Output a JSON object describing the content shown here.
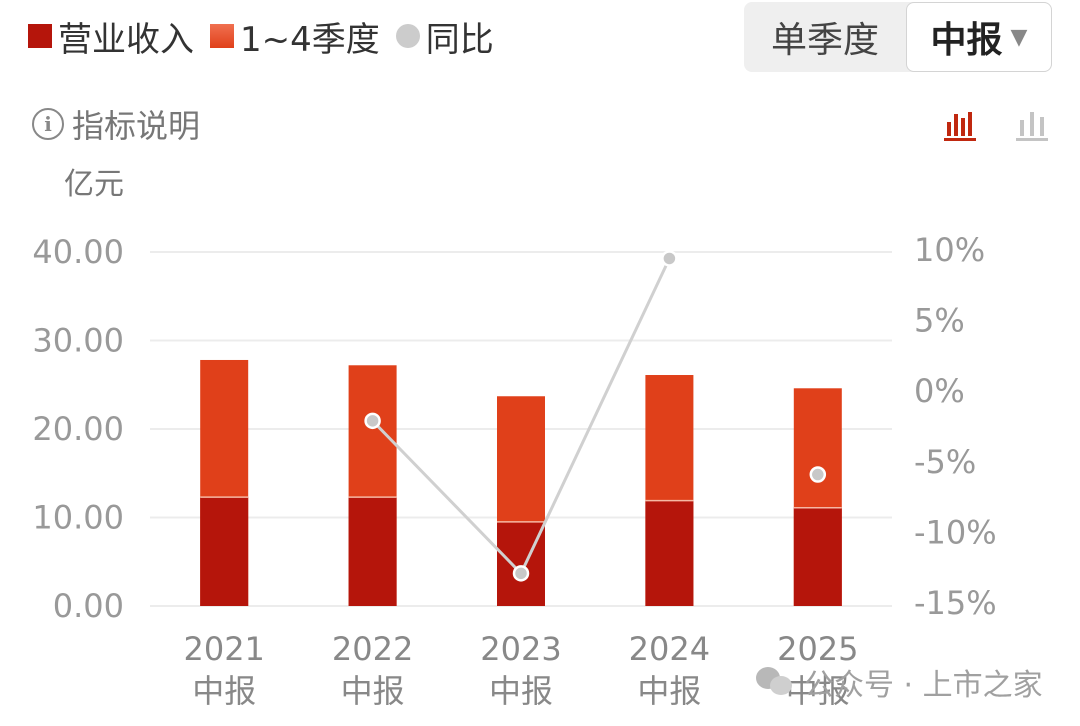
{
  "legend": {
    "revenue": "营业收入",
    "quarters": "1~4季度",
    "yoy": "同比"
  },
  "period_toggle": {
    "single_quarter": "单季度",
    "selected": "中报"
  },
  "info_label": "指标说明",
  "view_icons": [
    "bar-chart-icon",
    "bar-chart-alt-icon"
  ],
  "colors": {
    "revenue": "#b5150b",
    "quarters": "#e0401a",
    "yoy_line": "#d0d0d0",
    "yoy_point": "#c8c8c8",
    "grid": "#ececec",
    "active_icon": "#c0280f",
    "inactive_icon": "#c4c4c4"
  },
  "chart_data": {
    "type": "bar",
    "categories": [
      "2021\n中报",
      "2022\n中报",
      "2023\n中报",
      "2024\n中报",
      "2025\n中报"
    ],
    "y_left_unit": "亿元",
    "ylim": [
      0,
      40
    ],
    "y_left_ticks": [
      "0.00",
      "10.00",
      "20.00",
      "30.00",
      "40.00"
    ],
    "y_right_ticks": [
      "-15%",
      "-10%",
      "-5%",
      "0%",
      "5%",
      "10%"
    ],
    "y_right_lim": [
      -15,
      10
    ],
    "grid": true,
    "legend_position": "top-left",
    "series": [
      {
        "name": "营业收入",
        "kind": "bar",
        "values": [
          12.3,
          12.3,
          9.5,
          11.9,
          11.1
        ]
      },
      {
        "name": "1~4季度",
        "kind": "bar",
        "values": [
          27.8,
          27.2,
          23.7,
          26.1,
          24.6
        ]
      },
      {
        "name": "同比",
        "kind": "line",
        "axis": "right",
        "values": [
          null,
          -2.1,
          -12.9,
          9.4,
          -5.9
        ]
      }
    ]
  },
  "watermark": "公众号 · 上市之家"
}
